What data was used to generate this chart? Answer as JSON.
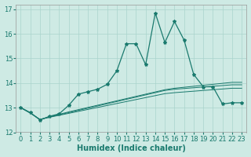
{
  "xlabel": "Humidex (Indice chaleur)",
  "bg_color": "#ceeae4",
  "grid_color": "#aad4cc",
  "line_color": "#1a7a6e",
  "xlim": [
    -0.5,
    23.5
  ],
  "ylim": [
    12,
    17.2
  ],
  "yticks": [
    12,
    13,
    14,
    15,
    16,
    17
  ],
  "xticks": [
    0,
    1,
    2,
    3,
    4,
    5,
    6,
    7,
    8,
    9,
    10,
    11,
    12,
    13,
    14,
    15,
    16,
    17,
    18,
    19,
    20,
    21,
    22,
    23
  ],
  "main_series": [
    13.0,
    12.8,
    12.5,
    12.65,
    12.75,
    13.1,
    13.55,
    13.65,
    13.75,
    13.95,
    14.5,
    15.6,
    15.6,
    14.75,
    16.85,
    15.65,
    16.5,
    15.75,
    14.35,
    13.85,
    13.85,
    13.15,
    13.2,
    13.2
  ],
  "line1": [
    13.0,
    12.78,
    12.52,
    12.63,
    12.73,
    12.83,
    12.92,
    13.01,
    13.1,
    13.19,
    13.28,
    13.37,
    13.46,
    13.55,
    13.64,
    13.73,
    13.79,
    13.83,
    13.87,
    13.91,
    13.95,
    13.99,
    14.03,
    14.03
  ],
  "line2": [
    13.0,
    12.78,
    12.52,
    12.62,
    12.71,
    12.8,
    12.89,
    12.98,
    13.07,
    13.16,
    13.25,
    13.34,
    13.43,
    13.52,
    13.61,
    13.7,
    13.75,
    13.78,
    13.81,
    13.84,
    13.87,
    13.9,
    13.93,
    13.93
  ],
  "line3": [
    13.0,
    12.78,
    12.52,
    12.61,
    12.69,
    12.77,
    12.85,
    12.93,
    13.01,
    13.09,
    13.17,
    13.25,
    13.33,
    13.41,
    13.49,
    13.57,
    13.61,
    13.64,
    13.67,
    13.7,
    13.73,
    13.76,
    13.79,
    13.79
  ]
}
